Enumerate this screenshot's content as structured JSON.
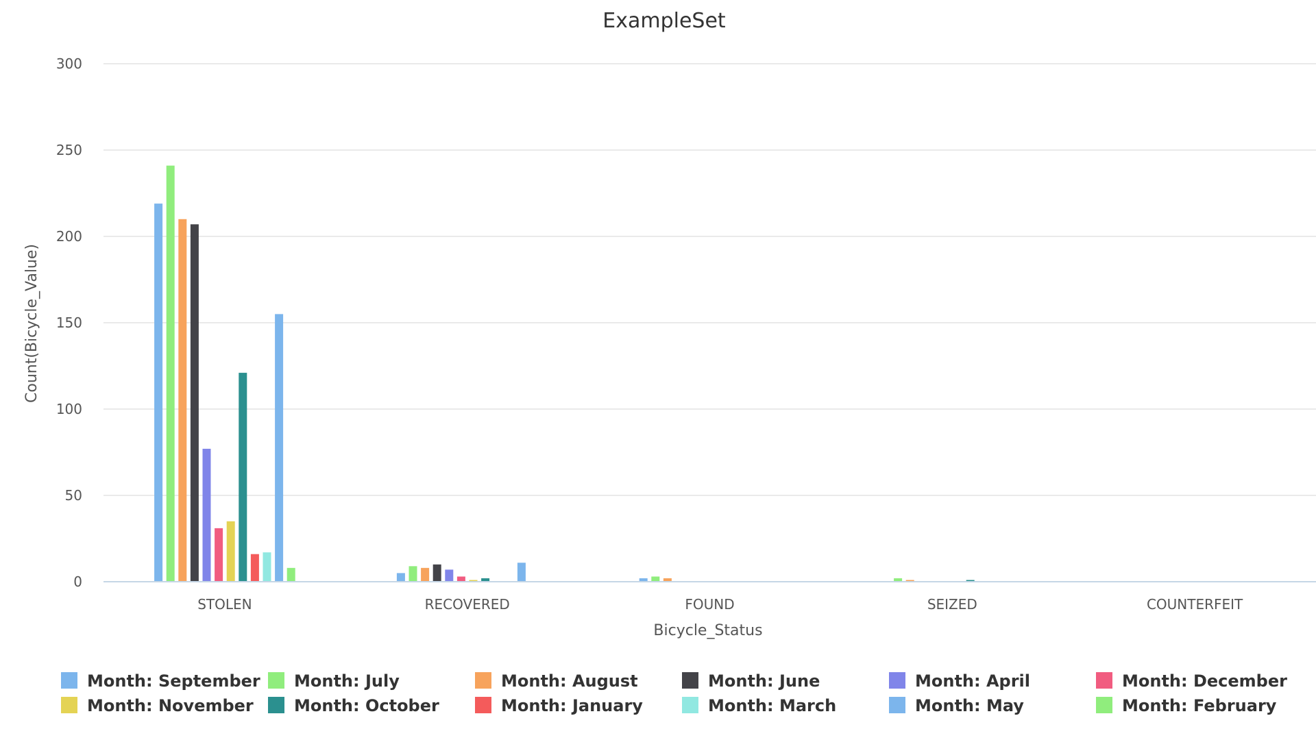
{
  "chart_data": {
    "type": "bar",
    "title": "ExampleSet",
    "xlabel": "Bicycle_Status",
    "ylabel": "Count(Bicycle_Value)",
    "ylim": [
      0,
      300
    ],
    "yticks": [
      "0",
      "50",
      "100",
      "150",
      "200",
      "250",
      "300"
    ],
    "categories": [
      "STOLEN",
      "RECOVERED",
      "FOUND",
      "SEIZED",
      "COUNTERFEIT"
    ],
    "grid": true,
    "legend_position": "bottom",
    "series": [
      {
        "name": "Month: September",
        "color": "#7cb5ec",
        "values": [
          219,
          5,
          2,
          0,
          0
        ]
      },
      {
        "name": "Month: July",
        "color": "#90ed7d",
        "values": [
          241,
          9,
          3,
          2,
          0
        ]
      },
      {
        "name": "Month: August",
        "color": "#f7a35c",
        "values": [
          210,
          8,
          2,
          1,
          0
        ]
      },
      {
        "name": "Month: June",
        "color": "#434348",
        "values": [
          207,
          10,
          0,
          0,
          0
        ]
      },
      {
        "name": "Month: April",
        "color": "#8085e9",
        "values": [
          77,
          7,
          0,
          0,
          0
        ]
      },
      {
        "name": "Month: December",
        "color": "#f15c80",
        "values": [
          31,
          3,
          0,
          0,
          0
        ]
      },
      {
        "name": "Month: November",
        "color": "#e4d354",
        "values": [
          35,
          1,
          0,
          0,
          0
        ]
      },
      {
        "name": "Month: October",
        "color": "#2b908f",
        "values": [
          121,
          2,
          0,
          1,
          0
        ]
      },
      {
        "name": "Month: January",
        "color": "#f45b5b",
        "values": [
          16,
          0,
          0,
          0,
          0
        ]
      },
      {
        "name": "Month: March",
        "color": "#91e8e1",
        "values": [
          17,
          0,
          0,
          0,
          0
        ]
      },
      {
        "name": "Month: May",
        "color": "#7cb5ec",
        "values": [
          155,
          11,
          0,
          0,
          0
        ]
      },
      {
        "name": "Month: February",
        "color": "#90ed7d",
        "values": [
          8,
          0,
          0,
          0,
          0
        ]
      }
    ]
  }
}
